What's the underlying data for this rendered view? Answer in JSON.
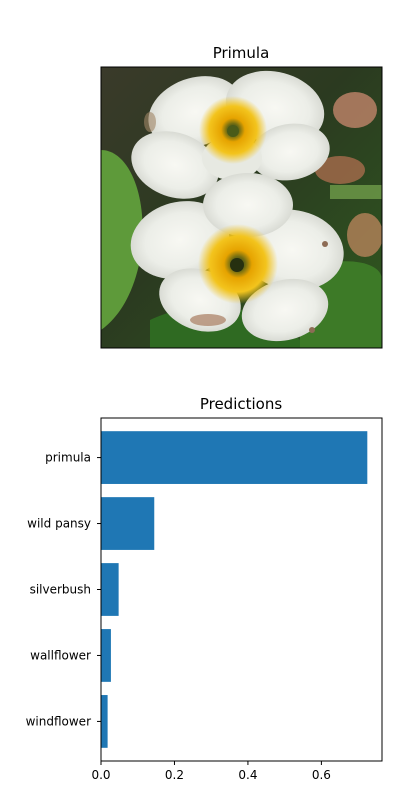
{
  "image_panel": {
    "title": "Primula"
  },
  "chart_data": {
    "type": "bar",
    "orientation": "horizontal",
    "title": "Predictions",
    "xlabel": "",
    "ylabel": "",
    "categories": [
      "primula",
      "wild pansy",
      "silverbush",
      "wallflower",
      "windflower"
    ],
    "values": [
      0.725,
      0.145,
      0.048,
      0.027,
      0.018
    ],
    "xlim": [
      0,
      0.765
    ],
    "xticks": [
      0.0,
      0.2,
      0.4,
      0.6
    ],
    "xtick_labels": [
      "0.0",
      "0.2",
      "0.4",
      "0.6"
    ],
    "grid": false,
    "bar_color": "#1f77b4"
  }
}
